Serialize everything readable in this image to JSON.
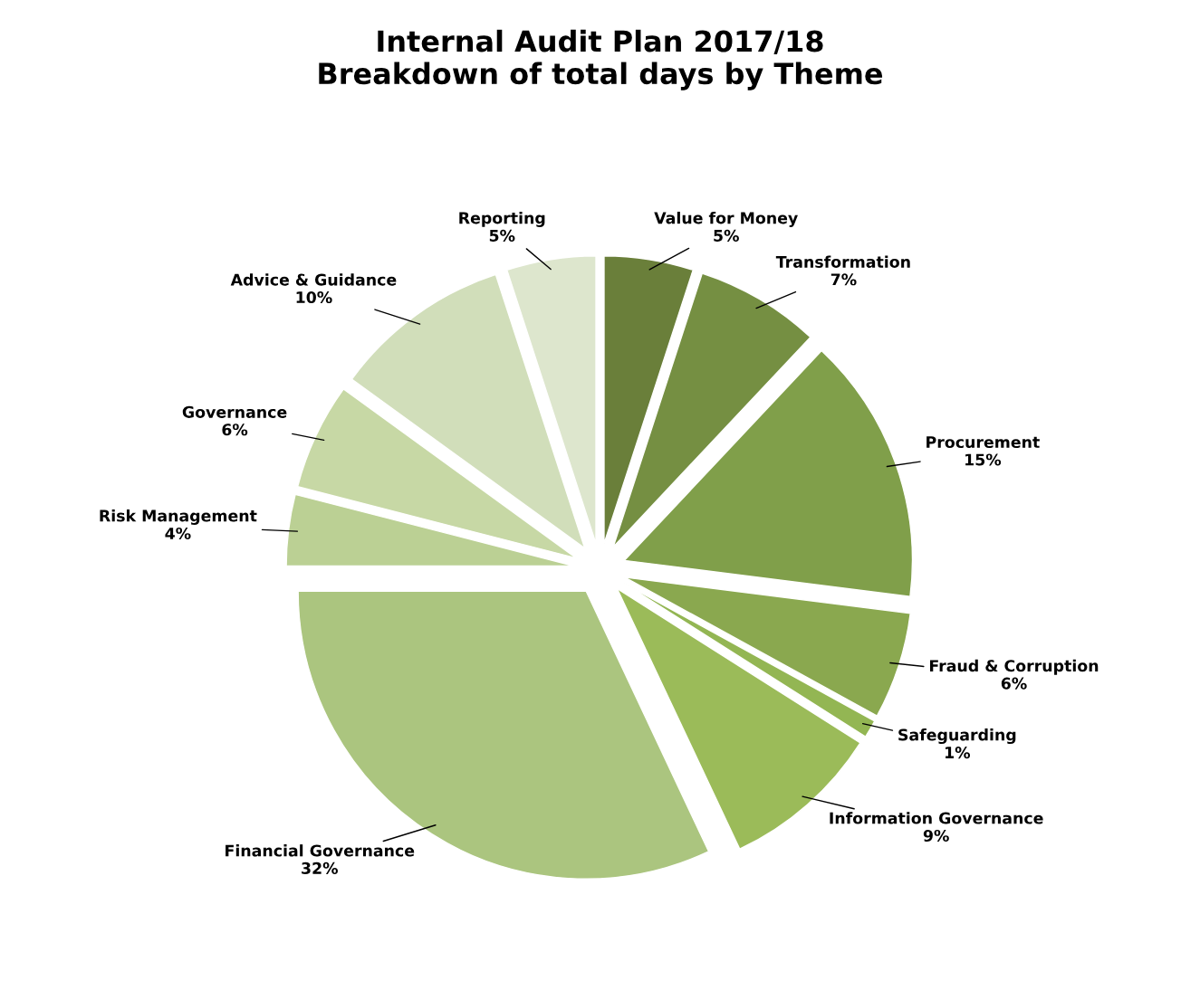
{
  "chart_data": {
    "type": "pie",
    "title": "Internal Audit Plan 2017/18\nBreakdown of total days by Theme",
    "categories": [
      "Value for Money",
      "Transformation",
      "Procurement",
      "Fraud & Corruption",
      "Safeguarding",
      "Information Governance",
      "Financial Governance",
      "Risk Management",
      "Governance",
      "Advice & Guidance",
      "Reporting"
    ],
    "values": [
      5,
      7,
      15,
      6,
      1,
      9,
      32,
      4,
      6,
      10,
      5
    ],
    "value_labels": [
      "5%",
      "7%",
      "15%",
      "6%",
      "1%",
      "9%",
      "32%",
      "4%",
      "6%",
      "10%",
      "5%"
    ],
    "colors": [
      "#6a7f3a",
      "#758f42",
      "#809f4a",
      "#8aa84f",
      "#93b653",
      "#9bbb59",
      "#abc57f",
      "#bbd094",
      "#c7d8a5",
      "#d1deba",
      "#dde6cd"
    ],
    "legend": false
  }
}
